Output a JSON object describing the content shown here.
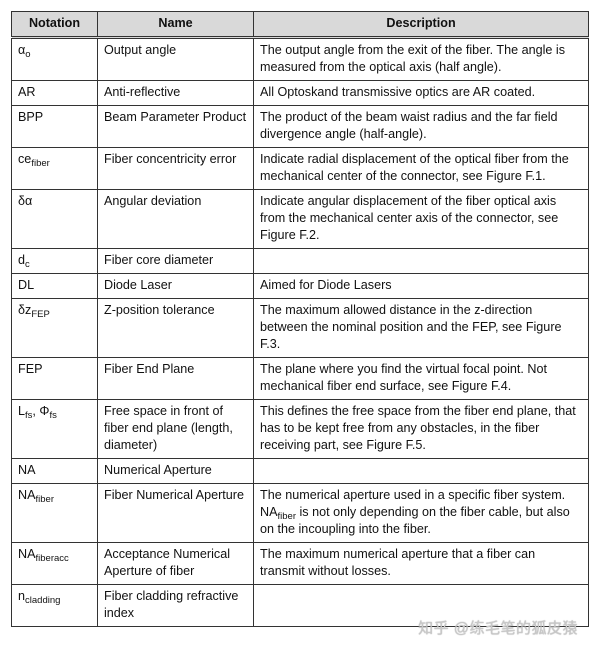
{
  "headers": [
    "Notation",
    "Name",
    "Description"
  ],
  "rows": [
    {
      "notation": [
        {
          "t": "α"
        },
        {
          "t": "o",
          "sub": true
        }
      ],
      "name": "Output angle",
      "desc": [
        {
          "t": "The output angle from the exit of the fiber. The angle is measured from the optical axis (half angle)."
        }
      ]
    },
    {
      "notation": [
        {
          "t": "AR"
        }
      ],
      "name": "Anti-reflective",
      "desc": [
        {
          "t": "All Optoskand transmissive optics are AR coated."
        }
      ]
    },
    {
      "notation": [
        {
          "t": "BPP"
        }
      ],
      "name": "Beam Parameter Product",
      "desc": [
        {
          "t": "The product of the beam waist radius and the far field divergence angle (half-angle)."
        }
      ]
    },
    {
      "notation": [
        {
          "t": "ce"
        },
        {
          "t": "fiber",
          "sub": true
        }
      ],
      "name": "Fiber concentricity error",
      "desc": [
        {
          "t": "Indicate radial displacement of the optical fiber from the mechanical center of the connector, see Figure F.1."
        }
      ]
    },
    {
      "notation": [
        {
          "t": "δα"
        }
      ],
      "name": "Angular deviation",
      "desc": [
        {
          "t": "Indicate angular displacement of the fiber optical axis from the mechanical center axis of the connector, see Figure F.2."
        }
      ]
    },
    {
      "notation": [
        {
          "t": "d"
        },
        {
          "t": "c",
          "sub": true
        }
      ],
      "name": "Fiber core diameter",
      "desc": [
        {
          "t": ""
        }
      ]
    },
    {
      "notation": [
        {
          "t": "DL"
        }
      ],
      "name": "Diode Laser",
      "desc": [
        {
          "t": "Aimed for Diode Lasers"
        }
      ]
    },
    {
      "notation": [
        {
          "t": "δz"
        },
        {
          "t": "FEP",
          "sub": true
        }
      ],
      "name": "Z-position tolerance",
      "desc": [
        {
          "t": "The maximum allowed distance in the z-direction between the nominal position and the FEP, see Figure F.3."
        }
      ]
    },
    {
      "notation": [
        {
          "t": "FEP"
        }
      ],
      "name": "Fiber End Plane",
      "desc": [
        {
          "t": "The plane where you find the virtual focal point. Not mechanical fiber end surface, see Figure F.4."
        }
      ]
    },
    {
      "notation": [
        {
          "t": "L"
        },
        {
          "t": "fs",
          "sub": true
        },
        {
          "t": ", Φ"
        },
        {
          "t": "fs",
          "sub": true
        }
      ],
      "name": "Free space in front of fiber end plane (length, diameter)",
      "desc": [
        {
          "t": "This defines the free space from the fiber end plane, that has to be kept free from any obstacles, in the fiber receiving part, see Figure F.5."
        }
      ]
    },
    {
      "notation": [
        {
          "t": "NA"
        }
      ],
      "name": "Numerical Aperture",
      "desc": [
        {
          "t": ""
        }
      ]
    },
    {
      "notation": [
        {
          "t": "NA"
        },
        {
          "t": "fiber",
          "sub": true
        }
      ],
      "name": "Fiber Numerical Aperture",
      "desc": [
        {
          "t": "The numerical aperture used in a specific fiber system. NA"
        },
        {
          "t": "fiber",
          "sub": true
        },
        {
          "t": " is not only depending on the fiber cable, but also on the incoupling into the fiber."
        }
      ]
    },
    {
      "notation": [
        {
          "t": "NA"
        },
        {
          "t": "fiberacc",
          "sub": true
        }
      ],
      "name": "Acceptance Numerical Aperture of fiber",
      "desc": [
        {
          "t": "The maximum numerical aperture that a fiber can transmit without losses."
        }
      ]
    },
    {
      "notation": [
        {
          "t": "n"
        },
        {
          "t": "cladding",
          "sub": true
        }
      ],
      "name": "Fiber cladding refractive index",
      "desc": [
        {
          "t": ""
        }
      ]
    }
  ],
  "watermark": "知乎 @练毛笔的狐皮猿"
}
